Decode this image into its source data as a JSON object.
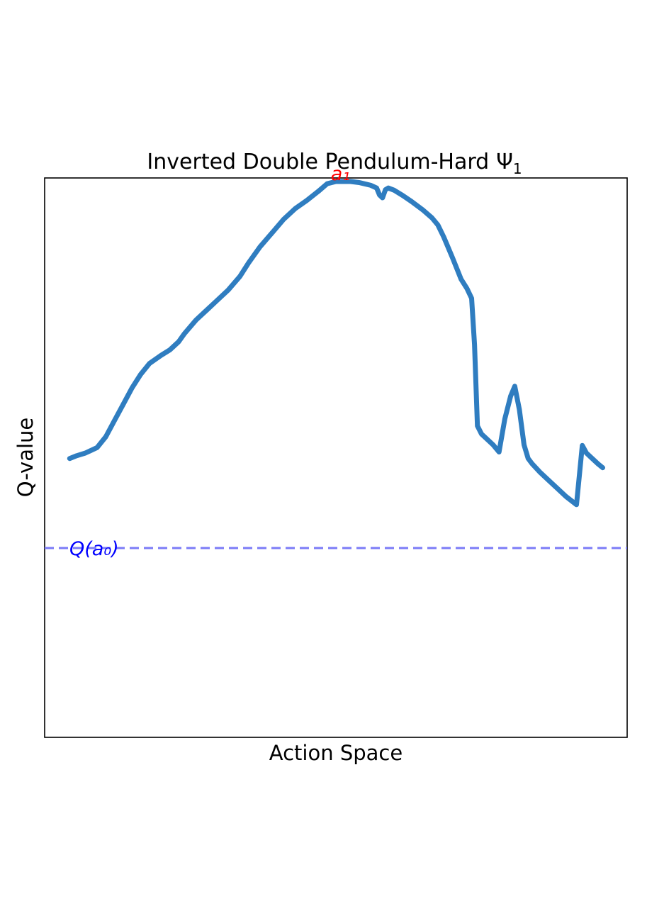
{
  "chart_data": {
    "type": "line",
    "title": "Inverted Double Pendulum-Hard",
    "title_symbol": "Ψ",
    "title_subscript": "1",
    "xlabel": "Action Space",
    "ylabel": "Q-value",
    "xlim": [
      0,
      100
    ],
    "ylim": [
      0,
      100
    ],
    "grid": false,
    "x_ticks_shown": false,
    "y_ticks_shown": false,
    "series": [
      {
        "color": "#2f7dc0",
        "x": [
          4.3,
          5.5,
          7,
          9,
          10.5,
          12,
          13.5,
          15,
          16.5,
          18,
          20,
          21.5,
          23,
          24,
          26,
          28,
          29.5,
          31.5,
          33.5,
          35,
          37,
          39,
          41,
          43,
          45,
          47,
          48.5,
          50,
          51,
          52.5,
          54,
          56,
          57,
          57.5,
          58,
          58.5,
          59,
          60,
          61.5,
          63,
          65,
          66.5,
          67.5,
          68.5,
          70,
          71.5,
          72.5,
          73.3,
          73.8,
          74.3,
          75,
          76,
          77,
          78,
          79,
          80,
          80.7,
          81.5,
          82.3,
          83,
          83.7,
          85,
          86.5,
          88,
          89.5,
          91.3,
          92.3,
          93,
          94,
          95,
          95.8
        ],
        "y": [
          49,
          49.5,
          50,
          51,
          53,
          56,
          59,
          62,
          64.5,
          66.5,
          68,
          69,
          70.5,
          72,
          74.5,
          76.5,
          78,
          80,
          82.5,
          85,
          88,
          90.5,
          93,
          95,
          96.5,
          98.2,
          99.6,
          100,
          100,
          100,
          99.8,
          99.3,
          98.8,
          97.5,
          97,
          98.5,
          98.8,
          98.4,
          97.4,
          96.3,
          94.7,
          93.3,
          92,
          89.8,
          86,
          82,
          80.3,
          78.5,
          70,
          55,
          53.5,
          52.5,
          51.5,
          50.2,
          56.3,
          60.5,
          62.3,
          58,
          51.5,
          49,
          48,
          46.5,
          45,
          43.5,
          42,
          40.5,
          51.4,
          50,
          49,
          48,
          47.3
        ]
      }
    ],
    "annotations": [
      {
        "label": "a₁",
        "x": 52,
        "y": 100,
        "color": "#ff0000"
      },
      {
        "label": "Q(a₀)",
        "y": 32.5,
        "color": "#0000ff",
        "line_color": "#7b7bf7",
        "linestyle": "dashed"
      }
    ]
  }
}
